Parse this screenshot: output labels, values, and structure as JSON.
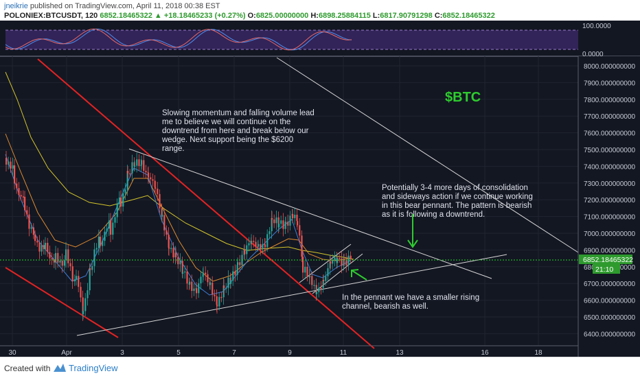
{
  "header": {
    "author": "jneikrie",
    "published": "published on TradingView.com, April 11, 2018 00:38 EST",
    "symbol": "POLONIEX:BTCUSDT, 120",
    "last": "6852.18465322",
    "change": "+18.18465233 (+0.27%)",
    "open_label": "O:",
    "open": "6825.00000000",
    "high_label": "H:",
    "high": "6898.25884115",
    "low_label": "L:",
    "low": "6817.90791298",
    "close_label": "C:",
    "close": "6852.18465322"
  },
  "indicator": {
    "ticks": [
      "100.0000",
      "0.0000"
    ]
  },
  "price_axis": {
    "ticks": [
      "8000.000000000",
      "7900.000000000",
      "7800.000000000",
      "7700.000000000",
      "7600.000000000",
      "7500.000000000",
      "7400.000000000",
      "7300.000000000",
      "7200.000000000",
      "7100.000000000",
      "7000.000000000",
      "6900.000000000",
      "6800.000000000",
      "6700.000000000",
      "6600.000000000",
      "6500.000000000",
      "6400.000000000"
    ],
    "current_price": "6852.18465322",
    "countdown": "21:10"
  },
  "time_axis": {
    "ticks": [
      "30",
      "Apr",
      "3",
      "5",
      "7",
      "9",
      "11",
      "13",
      "16",
      "18"
    ]
  },
  "annotations": {
    "ticker": "$BTC",
    "note1": [
      "Slowing momentum and falling volume lead",
      "me to believe we will continue on the",
      "downtrend from here and break below our",
      "wedge.  Next support being the $6200",
      "range."
    ],
    "note2": [
      "Potentially 3-4 more days of consolidation",
      "and sideways action if we continue working",
      "in this bear pennant.  The pattern is bearish",
      "as it is following a downtrend."
    ],
    "note3": [
      "In the pennant we have a smaller rising",
      "channel, bearish as well."
    ]
  },
  "footer": {
    "created": "Created with",
    "brand": "TradingView"
  },
  "colors": {
    "background": "#131722",
    "up": "#26a69a",
    "down": "#ef5350",
    "annotation_green": "#2ecc2e",
    "trend_red": "#e52222"
  }
}
